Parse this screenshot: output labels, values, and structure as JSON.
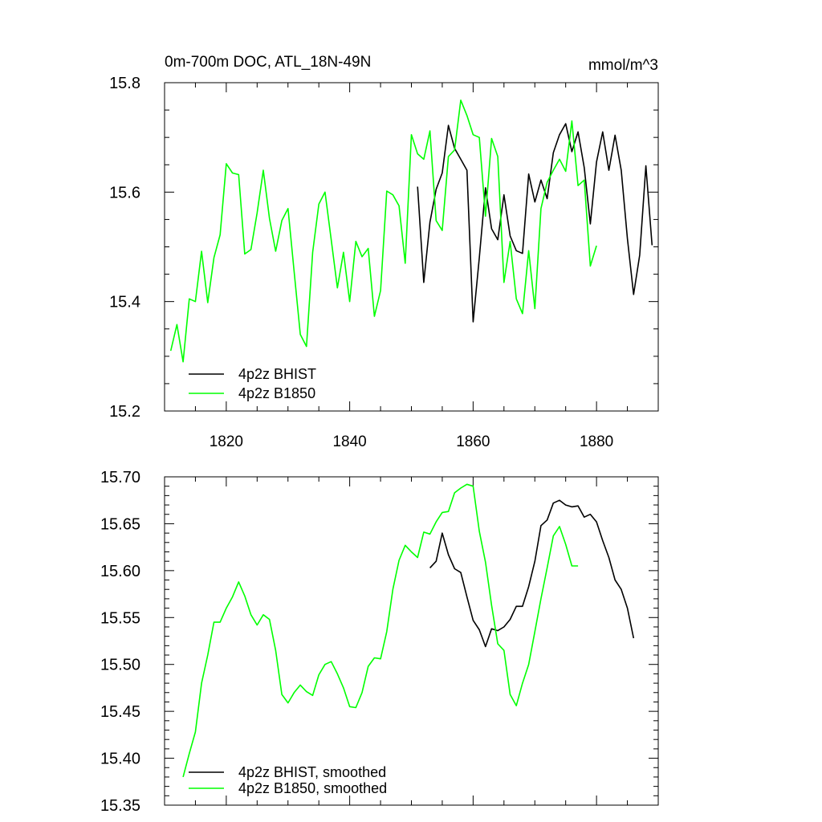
{
  "chart_data": [
    {
      "type": "line",
      "title": "0m-700m DOC, ATL_18N-49N",
      "units": "mmol/m^3",
      "xlim": [
        1810,
        1890
      ],
      "ylim": [
        15.2,
        15.8
      ],
      "xticks": [
        1820,
        1840,
        1860,
        1880
      ],
      "xtick_labels": [
        "1820",
        "1840",
        "1860",
        "1880"
      ],
      "yticks": [
        15.2,
        15.4,
        15.6,
        15.8
      ],
      "ytick_labels": [
        "15.2",
        "15.4",
        "15.6",
        "15.8"
      ],
      "grid": false,
      "legend": "bottom-left",
      "series": [
        {
          "name": "4p2z BHIST",
          "color": "#000000",
          "x": [
            1851,
            1852,
            1853,
            1854,
            1855,
            1856,
            1857,
            1858,
            1859,
            1860,
            1861,
            1862,
            1863,
            1864,
            1865,
            1866,
            1867,
            1868,
            1869,
            1870,
            1871,
            1872,
            1873,
            1874,
            1875,
            1876,
            1877,
            1878,
            1879,
            1880,
            1881,
            1882,
            1883,
            1884,
            1885,
            1886,
            1887,
            1888,
            1889
          ],
          "values": [
            15.61,
            15.435,
            15.545,
            15.605,
            15.635,
            15.722,
            15.68,
            15.66,
            15.64,
            15.363,
            15.48,
            15.608,
            15.533,
            15.513,
            15.595,
            15.52,
            15.493,
            15.488,
            15.633,
            15.582,
            15.622,
            15.588,
            15.672,
            15.705,
            15.725,
            15.674,
            15.71,
            15.645,
            15.542,
            15.655,
            15.71,
            15.64,
            15.704,
            15.64,
            15.515,
            15.413,
            15.485,
            15.648,
            15.503
          ]
        },
        {
          "name": "4p2z B1850",
          "color": "#00ff00",
          "x": [
            1811,
            1812,
            1813,
            1814,
            1815,
            1816,
            1817,
            1818,
            1819,
            1820,
            1821,
            1822,
            1823,
            1824,
            1825,
            1826,
            1827,
            1828,
            1829,
            1830,
            1831,
            1832,
            1833,
            1834,
            1835,
            1836,
            1837,
            1838,
            1839,
            1840,
            1841,
            1842,
            1843,
            1844,
            1845,
            1846,
            1847,
            1848,
            1849,
            1850,
            1851,
            1852,
            1853,
            1854,
            1855,
            1856,
            1857,
            1858,
            1859,
            1860,
            1861,
            1862,
            1863,
            1864,
            1865,
            1866,
            1867,
            1868,
            1869,
            1870,
            1871,
            1872,
            1873,
            1874,
            1875,
            1876,
            1877,
            1878,
            1879,
            1880
          ],
          "values": [
            15.31,
            15.358,
            15.29,
            15.405,
            15.4,
            15.492,
            15.398,
            15.48,
            15.522,
            15.652,
            15.635,
            15.632,
            15.487,
            15.495,
            15.562,
            15.64,
            15.552,
            15.492,
            15.548,
            15.57,
            15.455,
            15.34,
            15.318,
            15.49,
            15.578,
            15.6,
            15.513,
            15.425,
            15.49,
            15.4,
            15.51,
            15.482,
            15.497,
            15.373,
            15.42,
            15.602,
            15.595,
            15.575,
            15.47,
            15.705,
            15.67,
            15.66,
            15.712,
            15.548,
            15.53,
            15.665,
            15.677,
            15.768,
            15.74,
            15.705,
            15.7,
            15.556,
            15.698,
            15.665,
            15.435,
            15.51,
            15.405,
            15.378,
            15.493,
            15.387,
            15.57,
            15.618,
            15.64,
            15.66,
            15.638,
            15.73,
            15.612,
            15.622,
            15.465,
            15.502
          ]
        }
      ]
    },
    {
      "type": "line",
      "title": "",
      "xlim": [
        1810,
        1890
      ],
      "ylim": [
        15.35,
        15.7
      ],
      "xticks": [
        1820,
        1840,
        1860,
        1880
      ],
      "yticks": [
        15.35,
        15.4,
        15.45,
        15.5,
        15.55,
        15.6,
        15.65,
        15.7
      ],
      "ytick_labels": [
        "15.35",
        "15.40",
        "15.45",
        "15.50",
        "15.55",
        "15.60",
        "15.65",
        "15.70"
      ],
      "grid": false,
      "legend": "bottom-left",
      "series": [
        {
          "name": "4p2z BHIST, smoothed",
          "color": "#000000",
          "x": [
            1853,
            1854,
            1855,
            1856,
            1857,
            1858,
            1859,
            1860,
            1861,
            1862,
            1863,
            1864,
            1865,
            1866,
            1867,
            1868,
            1869,
            1870,
            1871,
            1872,
            1873,
            1874,
            1875,
            1876,
            1877,
            1878,
            1879,
            1880,
            1881,
            1882,
            1883,
            1884,
            1885,
            1886
          ],
          "values": [
            15.603,
            15.61,
            15.64,
            15.617,
            15.602,
            15.598,
            15.572,
            15.547,
            15.537,
            15.519,
            15.538,
            15.536,
            15.54,
            15.548,
            15.562,
            15.562,
            15.583,
            15.61,
            15.648,
            15.654,
            15.672,
            15.675,
            15.67,
            15.668,
            15.669,
            15.657,
            15.66,
            15.652,
            15.632,
            15.614,
            15.59,
            15.58,
            15.56,
            15.528
          ]
        },
        {
          "name": "4p2z B1850, smoothed",
          "color": "#00ff00",
          "x": [
            1813,
            1814,
            1815,
            1816,
            1817,
            1818,
            1819,
            1820,
            1821,
            1822,
            1823,
            1824,
            1825,
            1826,
            1827,
            1828,
            1829,
            1830,
            1831,
            1832,
            1833,
            1834,
            1835,
            1836,
            1837,
            1838,
            1839,
            1840,
            1841,
            1842,
            1843,
            1844,
            1845,
            1846,
            1847,
            1848,
            1849,
            1850,
            1851,
            1852,
            1853,
            1854,
            1855,
            1856,
            1857,
            1858,
            1859,
            1860,
            1861,
            1862,
            1863,
            1864,
            1865,
            1866,
            1867,
            1868,
            1869,
            1870,
            1871,
            1872,
            1873,
            1874,
            1875,
            1876,
            1877
          ],
          "values": [
            15.38,
            15.405,
            15.428,
            15.48,
            15.51,
            15.545,
            15.545,
            15.56,
            15.572,
            15.588,
            15.573,
            15.553,
            15.542,
            15.553,
            15.548,
            15.515,
            15.468,
            15.459,
            15.47,
            15.478,
            15.471,
            15.467,
            15.489,
            15.5,
            15.503,
            15.49,
            15.475,
            15.455,
            15.454,
            15.47,
            15.498,
            15.507,
            15.506,
            15.535,
            15.58,
            15.611,
            15.627,
            15.62,
            15.614,
            15.641,
            15.639,
            15.652,
            15.662,
            15.663,
            15.683,
            15.688,
            15.692,
            15.69,
            15.642,
            15.609,
            15.563,
            15.522,
            15.515,
            15.468,
            15.456,
            15.48,
            15.5,
            15.535,
            15.57,
            15.603,
            15.637,
            15.647,
            15.628,
            15.605,
            15.605
          ]
        }
      ]
    }
  ]
}
